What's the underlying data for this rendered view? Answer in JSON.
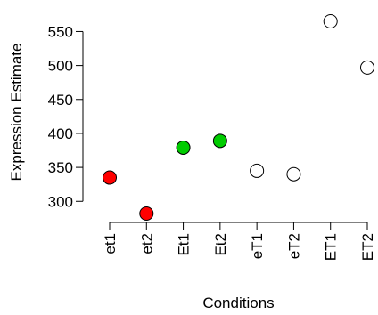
{
  "chart_data": {
    "type": "scatter",
    "title": "",
    "xlabel": "Conditions",
    "ylabel": "Expression Estimate",
    "categories": [
      "et1",
      "et2",
      "Et1",
      "Et2",
      "eT1",
      "eT2",
      "ET1",
      "ET2"
    ],
    "values": [
      335,
      282,
      379,
      389,
      345,
      340,
      565,
      497
    ],
    "colors": [
      "#ff0000",
      "#ff0000",
      "#00cc00",
      "#00cc00",
      "#ffffff",
      "#ffffff",
      "#ffffff",
      "#ffffff"
    ],
    "yticks": [
      300,
      350,
      400,
      450,
      500,
      550
    ],
    "ylim": [
      282,
      565
    ],
    "grid": false
  }
}
